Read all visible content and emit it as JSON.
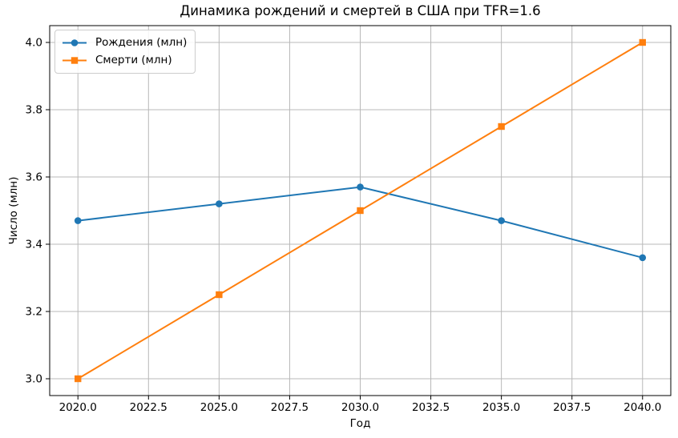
{
  "chart_data": {
    "type": "line",
    "title": "Динамика рождений и смертей в США при TFR=1.6",
    "xlabel": "Год",
    "ylabel": "Число (млн)",
    "x": [
      2020,
      2025,
      2030,
      2035,
      2040
    ],
    "series": [
      {
        "name": "Рождения (млн)",
        "values": [
          3.47,
          3.52,
          3.57,
          3.47,
          3.36
        ],
        "color": "#1f77b4",
        "marker": "circle"
      },
      {
        "name": "Смерти (млн)",
        "values": [
          3.0,
          3.25,
          3.5,
          3.75,
          4.0
        ],
        "color": "#ff7f0e",
        "marker": "square"
      }
    ],
    "xlim": [
      2019,
      2041
    ],
    "ylim": [
      2.95,
      4.05
    ],
    "xticks": [
      2020.0,
      2022.5,
      2025.0,
      2027.5,
      2030.0,
      2032.5,
      2035.0,
      2037.5,
      2040.0
    ],
    "yticks": [
      3.0,
      3.2,
      3.4,
      3.6,
      3.8,
      4.0
    ],
    "tick_decimals": 1,
    "grid": true,
    "grid_color": "#b8b8b8",
    "spine_color": "#000000",
    "background": "#ffffff",
    "legend_position": "upper left"
  }
}
